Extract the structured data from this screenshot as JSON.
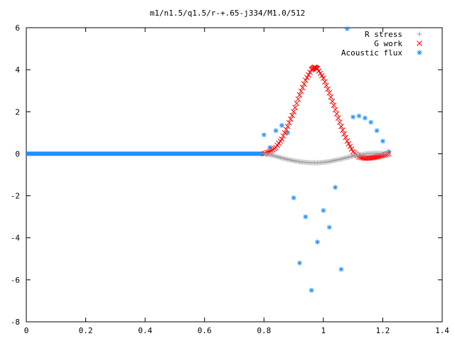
{
  "chart_data": {
    "type": "scatter",
    "title": "m1/n1.5/q1.5/r-+.65-j334/M1.0/512",
    "xlabel": "",
    "ylabel": "",
    "xlim": [
      0,
      1.4
    ],
    "ylim": [
      -8,
      6
    ],
    "xticks": [
      "0",
      "0.2",
      "0.4",
      "0.6",
      "0.8",
      "1",
      "1.2",
      "1.4"
    ],
    "yticks": [
      "-8",
      "-6",
      "-4",
      "-2",
      "0",
      "2",
      "4",
      "6"
    ],
    "grid": false,
    "legend_position": "top-right",
    "series": [
      {
        "name": "R stress",
        "marker": "+",
        "color": "#a0a0a4",
        "x": [
          0.8,
          0.82,
          0.84,
          0.86,
          0.88,
          0.9,
          0.92,
          0.94,
          0.96,
          0.98,
          1.0,
          1.02,
          1.04,
          1.06,
          1.08,
          1.1,
          1.12,
          1.14,
          1.16,
          1.18,
          1.2,
          1.22
        ],
        "y": [
          0.0,
          -0.05,
          -0.12,
          -0.2,
          -0.27,
          -0.33,
          -0.38,
          -0.41,
          -0.43,
          -0.43,
          -0.41,
          -0.37,
          -0.31,
          -0.25,
          -0.18,
          -0.11,
          -0.05,
          -0.01,
          0.02,
          0.03,
          0.02,
          0.0
        ]
      },
      {
        "name": "G work",
        "marker": "x",
        "color": "#ff0000",
        "x": [
          0.8,
          0.82,
          0.84,
          0.86,
          0.88,
          0.9,
          0.92,
          0.94,
          0.96,
          0.97,
          0.98,
          1.0,
          1.02,
          1.04,
          1.06,
          1.08,
          1.1,
          1.12,
          1.14,
          1.16,
          1.18,
          1.2,
          1.22
        ],
        "y": [
          0.0,
          0.1,
          0.3,
          0.7,
          1.3,
          2.0,
          2.8,
          3.5,
          4.0,
          4.12,
          4.05,
          3.6,
          2.9,
          2.1,
          1.3,
          0.6,
          0.1,
          -0.15,
          -0.22,
          -0.2,
          -0.15,
          -0.08,
          0.0
        ]
      },
      {
        "name": "Acoustic flux",
        "marker": "*",
        "color": "#1e90ff",
        "x": [
          0.8,
          0.82,
          0.84,
          0.86,
          0.88,
          0.9,
          0.92,
          0.94,
          0.96,
          0.98,
          1.0,
          1.02,
          1.04,
          1.06,
          1.08,
          1.1,
          1.12,
          1.14,
          1.16,
          1.18,
          1.2,
          1.22
        ],
        "y": [
          0.9,
          0.3,
          1.1,
          1.35,
          1.0,
          -2.1,
          -5.2,
          -3.0,
          -6.5,
          -4.2,
          -2.7,
          -3.5,
          -1.6,
          -5.5,
          5.95,
          1.75,
          1.8,
          1.7,
          1.5,
          1.1,
          0.6,
          0.1
        ]
      }
    ],
    "baseline": {
      "x_from": 0.0,
      "x_to": 0.8,
      "y": 0.0,
      "color": "#1e90ff"
    }
  }
}
